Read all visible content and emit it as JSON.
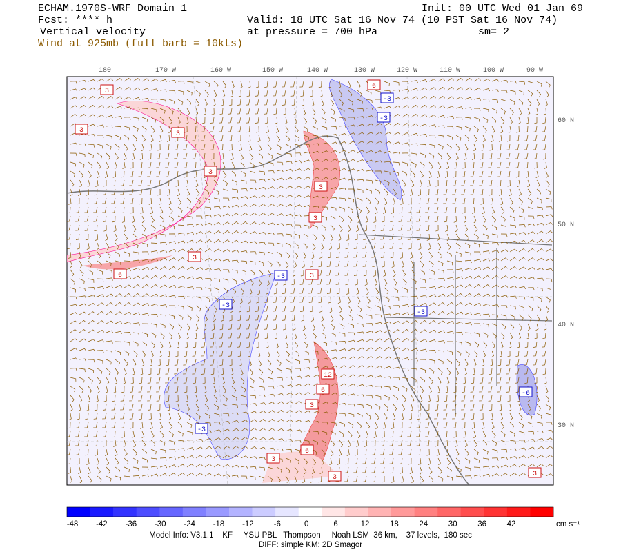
{
  "header": {
    "model": "ECHAM.1970S-WRF Domain 1",
    "forecast": "Fcst: **** h",
    "field": "Vertical velocity",
    "wind": "Wind at 925mb (full barb = 10kts)",
    "init": "Init: 00 UTC Wed 01 Jan 69",
    "valid": "Valid: 18 UTC Sat 16 Nov 74 (10 PST Sat 16 Nov 74)",
    "pressure": "at pressure =  700 hPa",
    "smoothing": "sm= 2"
  },
  "map": {
    "lon_labels": [
      "180",
      "170 W",
      "160 W",
      "150 W",
      "140 W",
      "130 W",
      "120 W",
      "110 W",
      "100 W",
      "90 W"
    ],
    "lat_labels": [
      "60 N",
      "50 N",
      "40 N",
      "30 N"
    ],
    "contour_labels": [
      3,
      3,
      3,
      3,
      3,
      6,
      3,
      3,
      6,
      -3,
      -3,
      -3,
      3,
      -3,
      -3,
      12,
      6,
      3,
      6,
      3,
      3,
      -3,
      -6,
      3
    ]
  },
  "colorbar": {
    "ticks": [
      -48,
      -42,
      -36,
      -30,
      -24,
      -18,
      -12,
      -6,
      0,
      6,
      12,
      18,
      24,
      30,
      36,
      42
    ],
    "unit": "cm s⁻¹",
    "colors": [
      "#0000ff",
      "#1a1aff",
      "#3333ff",
      "#4d4dff",
      "#6666ff",
      "#8080ff",
      "#9999ff",
      "#b3b3ff",
      "#ccccff",
      "#e6e6ff",
      "#ffffff",
      "#ffe6e6",
      "#ffcccc",
      "#ffb3b3",
      "#ff9999",
      "#ff8080",
      "#ff6666",
      "#ff4d4d",
      "#ff3333",
      "#ff1a1a",
      "#ff0000"
    ]
  },
  "footer": {
    "line1": "Model Info: V3.1.1    KF     YSU PBL   Thompson     Noah LSM  36 km,    37 levels,  180 sec",
    "line2": "DIFF: simple KM: 2D Smagor"
  }
}
